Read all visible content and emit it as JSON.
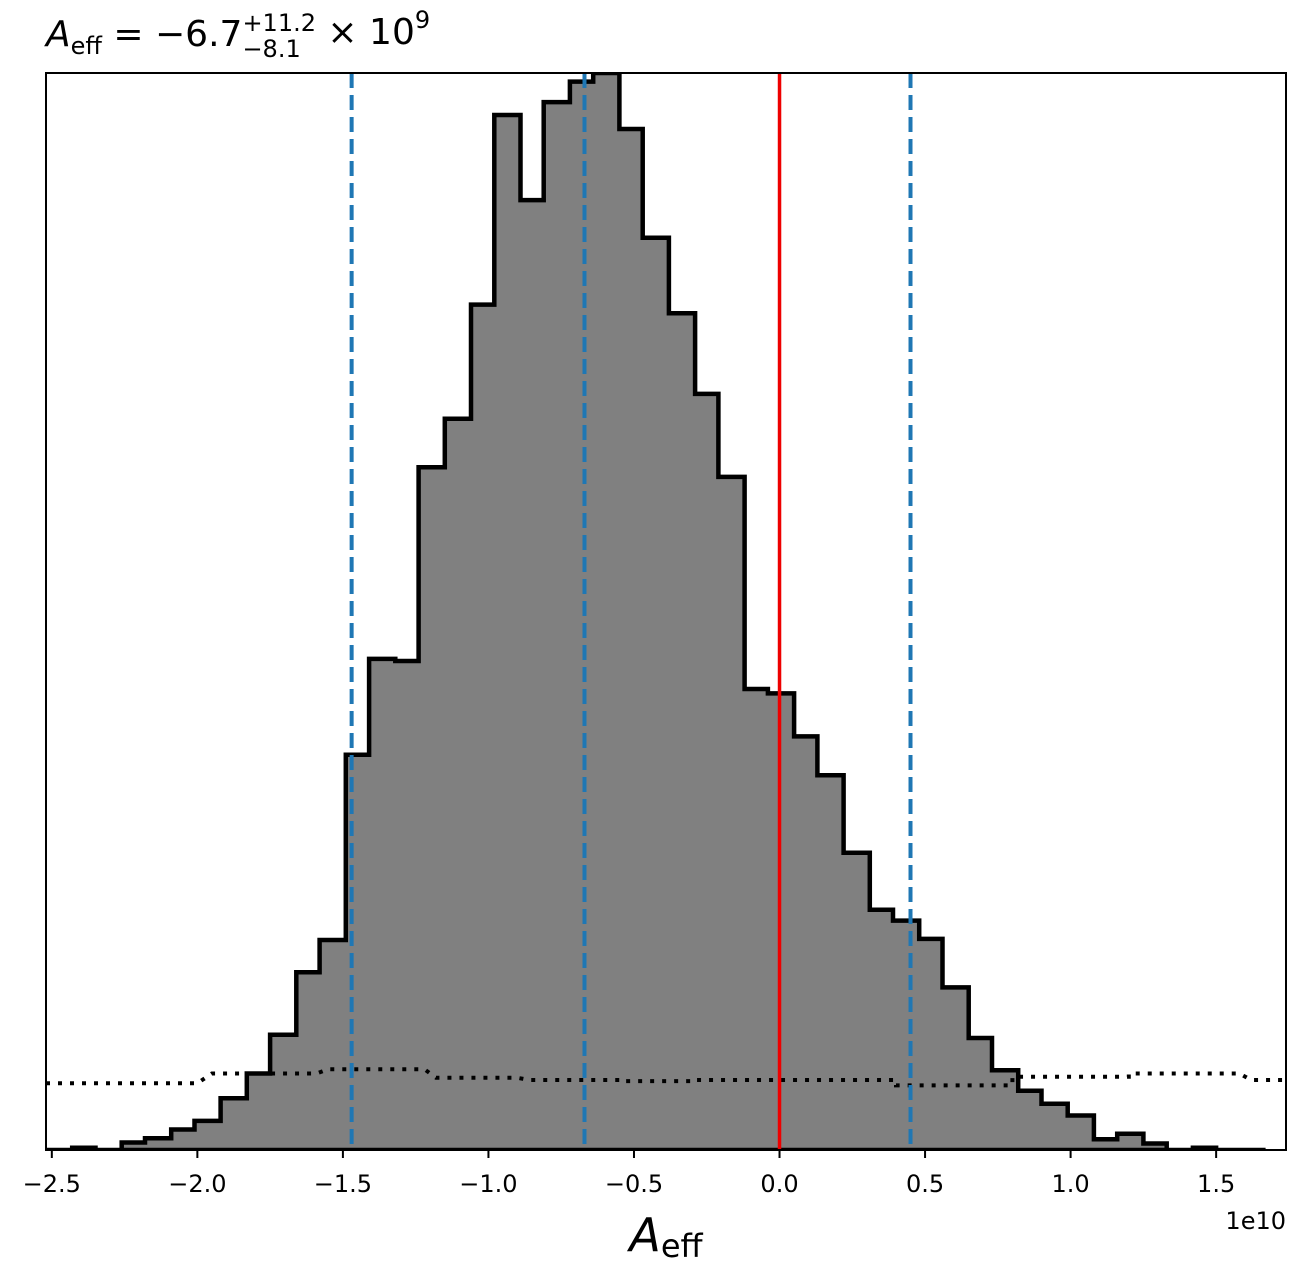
{
  "chart_data": {
    "type": "histogram",
    "title": {
      "symbol": "A",
      "subscript": "eff",
      "equals": " = ",
      "value": "−6.7",
      "upper": "+11.2",
      "lower": "−8.1",
      "times": " × 10",
      "exponent": "9"
    },
    "xlabel": {
      "symbol": "A",
      "subscript": "eff"
    },
    "offset_text": "1e10",
    "x_units_scale": 10000000000.0,
    "xlim": [
      -2.52,
      1.74
    ],
    "ylim": [
      0,
      1.0
    ],
    "x_ticks": [
      -2.5,
      -2.0,
      -1.5,
      -1.0,
      -0.5,
      0.0,
      0.5,
      1.0,
      1.5
    ],
    "x_tick_labels": [
      "−2.5",
      "−2.0",
      "−1.5",
      "−1.0",
      "−0.5",
      "0.0",
      "0.5",
      "1.0",
      "1.5"
    ],
    "histogram": {
      "fill_color": "#808080",
      "edge_color": "#000000",
      "bin_edges": [
        -2.52,
        -2.43,
        -2.35,
        -2.26,
        -2.18,
        -2.09,
        -2.01,
        -1.92,
        -1.83,
        -1.75,
        -1.66,
        -1.58,
        -1.49,
        -1.41,
        -1.32,
        -1.24,
        -1.15,
        -1.06,
        -0.98,
        -0.89,
        -0.81,
        -0.72,
        -0.64,
        -0.55,
        -0.47,
        -0.38,
        -0.29,
        -0.21,
        -0.12,
        -0.04,
        0.05,
        0.13,
        0.22,
        0.31,
        0.39,
        0.48,
        0.56,
        0.65,
        0.73,
        0.82,
        0.9,
        0.99,
        1.08,
        1.16,
        1.25,
        1.33,
        1.42,
        1.5,
        1.59,
        1.67
      ],
      "densities": [
        0.0,
        0.002,
        0.0,
        0.007,
        0.011,
        0.019,
        0.027,
        0.048,
        0.071,
        0.107,
        0.165,
        0.195,
        0.367,
        0.456,
        0.454,
        0.634,
        0.679,
        0.785,
        0.961,
        0.882,
        0.973,
        0.992,
        1.0,
        0.948,
        0.847,
        0.777,
        0.702,
        0.625,
        0.428,
        0.424,
        0.384,
        0.348,
        0.276,
        0.223,
        0.213,
        0.196,
        0.151,
        0.104,
        0.074,
        0.055,
        0.043,
        0.032,
        0.01,
        0.015,
        0.006,
        0.0,
        0.002,
        0.0,
        0.0
      ]
    },
    "prior": {
      "style": "dotted",
      "color": "#000000",
      "points": [
        [
          -2.52,
          0.062
        ],
        [
          -2.0,
          0.062
        ],
        [
          -1.95,
          0.071
        ],
        [
          -1.59,
          0.071
        ],
        [
          -1.55,
          0.075
        ],
        [
          -1.22,
          0.075
        ],
        [
          -1.18,
          0.067
        ],
        [
          -0.9,
          0.067
        ],
        [
          -0.86,
          0.065
        ],
        [
          -0.55,
          0.065
        ],
        [
          -0.55,
          0.064
        ],
        [
          -0.3,
          0.064
        ],
        [
          -0.3,
          0.065
        ],
        [
          0.4,
          0.065
        ],
        [
          0.4,
          0.06
        ],
        [
          0.8,
          0.06
        ],
        [
          0.8,
          0.068
        ],
        [
          1.2,
          0.068
        ],
        [
          1.2,
          0.071
        ],
        [
          1.58,
          0.071
        ],
        [
          1.62,
          0.065
        ],
        [
          1.74,
          0.065
        ]
      ]
    },
    "vlines": [
      {
        "x": -1.47,
        "color": "#1f77b4",
        "style": "dashed"
      },
      {
        "x": -0.67,
        "color": "#1f77b4",
        "style": "dashed"
      },
      {
        "x": 0.0,
        "color": "#ee0000",
        "style": "solid"
      },
      {
        "x": 0.45,
        "color": "#1f77b4",
        "style": "dashed"
      }
    ],
    "grid": false,
    "legend": "none"
  }
}
